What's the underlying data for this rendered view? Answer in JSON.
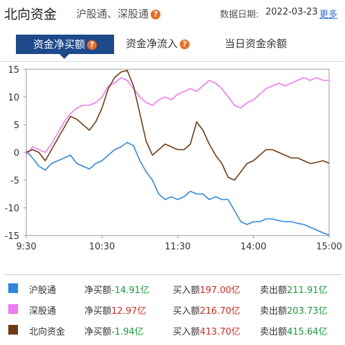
{
  "header": {
    "title": "北向资金",
    "subtitle": "沪股通、深股通",
    "date_label": "数据日期:",
    "date_value": "2022-03-23",
    "more": "更多",
    "help_icon": "question-icon"
  },
  "tabs": [
    {
      "label": "资金净买额",
      "active": true
    },
    {
      "label": "资金净流入",
      "active": false
    },
    {
      "label": "当日资金余额",
      "active": false
    }
  ],
  "colors": {
    "沪股通": "#2f87e0",
    "深股通": "#f07af0",
    "北向资金": "#6e3a12",
    "negative": "#1a9a3a",
    "positive": "#d8281e"
  },
  "chart_data": {
    "type": "line",
    "x_ticks": [
      "9:30",
      "10:30",
      "11:30",
      "14:00",
      "15:00"
    ],
    "y_ticks": [
      15,
      10,
      5,
      0,
      -5,
      -10,
      -15
    ],
    "ylim": [
      -15,
      15
    ],
    "x_minutes": [
      0,
      5,
      10,
      15,
      20,
      25,
      30,
      35,
      40,
      45,
      50,
      55,
      60,
      65,
      70,
      75,
      80,
      85,
      90,
      95,
      100,
      105,
      110,
      115,
      120,
      125,
      130,
      135,
      140,
      145,
      150,
      155,
      160,
      165,
      170,
      175,
      180,
      185,
      190,
      195,
      200,
      205,
      210,
      215,
      220,
      225,
      230,
      235,
      240
    ],
    "series": [
      {
        "name": "沪股通",
        "values": [
          0.3,
          -1.0,
          -2.5,
          -3.2,
          -2.0,
          -1.5,
          -1.0,
          -0.5,
          -2.0,
          -2.5,
          -3.0,
          -2.0,
          -1.5,
          -0.5,
          0.5,
          1.0,
          1.8,
          1.2,
          -1.5,
          -3.5,
          -5.0,
          -7.5,
          -8.5,
          -8.0,
          -8.5,
          -8.0,
          -7.0,
          -7.5,
          -7.5,
          -8.5,
          -8.0,
          -8.5,
          -8.5,
          -10.5,
          -12.5,
          -13.0,
          -12.5,
          -12.5,
          -12.0,
          -12.0,
          -12.3,
          -12.5,
          -12.5,
          -12.8,
          -13.0,
          -13.5,
          -14.0,
          -14.5,
          -14.91
        ]
      },
      {
        "name": "深股通",
        "values": [
          -0.5,
          1.0,
          0.5,
          0.0,
          1.5,
          3.5,
          5.5,
          7.0,
          8.0,
          8.5,
          8.5,
          9.0,
          10.0,
          12.0,
          12.5,
          13.5,
          13.0,
          11.5,
          10.0,
          9.0,
          8.5,
          9.5,
          10.0,
          9.5,
          10.5,
          11.0,
          11.5,
          11.0,
          12.0,
          13.0,
          12.5,
          11.5,
          10.0,
          8.5,
          8.0,
          9.0,
          9.5,
          10.5,
          11.5,
          12.0,
          12.5,
          12.0,
          12.5,
          13.0,
          13.5,
          13.0,
          13.5,
          13.0,
          12.97
        ]
      },
      {
        "name": "北向资金",
        "values": [
          0.0,
          0.5,
          0.0,
          -1.5,
          0.5,
          2.5,
          4.5,
          6.5,
          6.0,
          5.0,
          4.0,
          5.5,
          8.0,
          11.5,
          13.5,
          14.5,
          14.8,
          12.0,
          7.0,
          2.0,
          -0.5,
          0.5,
          1.5,
          1.0,
          0.5,
          0.5,
          1.5,
          5.5,
          4.0,
          1.5,
          -0.5,
          -2.0,
          -4.5,
          -5.0,
          -3.5,
          -2.0,
          -1.5,
          -0.5,
          0.5,
          0.5,
          0.0,
          -0.5,
          -1.0,
          -1.0,
          -1.5,
          -2.0,
          -1.8,
          -1.5,
          -1.94
        ]
      }
    ]
  },
  "legend": [
    {
      "name": "沪股通",
      "net_label": "净买额",
      "net": "-14.91",
      "buy_label": "买入额",
      "buy": "197.00",
      "sell_label": "卖出额",
      "sell": "211.91",
      "unit": "亿"
    },
    {
      "name": "深股通",
      "net_label": "净买额",
      "net": "12.97",
      "buy_label": "买入额",
      "buy": "216.70",
      "sell_label": "卖出额",
      "sell": "203.73",
      "unit": "亿"
    },
    {
      "name": "北向资金",
      "net_label": "净买额",
      "net": "-1.94",
      "buy_label": "买入额",
      "buy": "413.70",
      "sell_label": "卖出额",
      "sell": "415.64",
      "unit": "亿"
    }
  ]
}
